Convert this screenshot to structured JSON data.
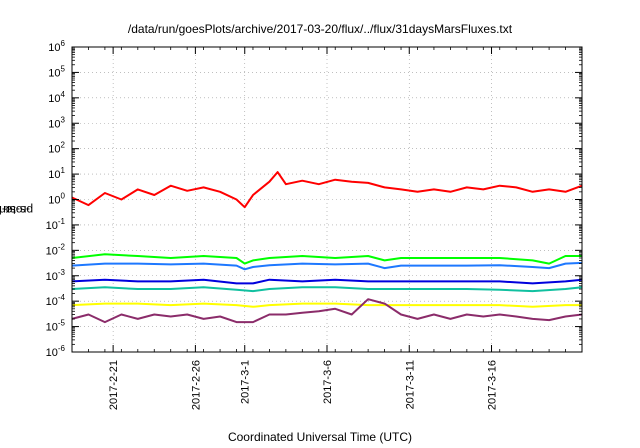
{
  "chart_data": {
    "type": "line",
    "title": "/data/run/goesPlots/archive/2017-03-20/flux/../flux/31daysMarsFluxes.txt",
    "xlabel": "Coordinated Universal Time (UTC)",
    "ylabel_prefix": "protons/cm",
    "ylabel_sup": "2",
    "ylabel_suffix": "-s-sr-MeV",
    "yscale": "log",
    "ylim_exp": [
      -6,
      6
    ],
    "ytick_exps": [
      -6,
      -5,
      -4,
      -3,
      -2,
      -1,
      0,
      1,
      2,
      3,
      4,
      5,
      6
    ],
    "xlim_days": [
      0,
      31
    ],
    "xtick_labels": [
      "2017-2-21",
      "2017-2-26",
      "2017-3-1",
      "2017-3-6",
      "2017-3-11",
      "2017-3-16"
    ],
    "xtick_days": [
      2.5,
      7.5,
      10.5,
      15.5,
      20.5,
      25.5
    ],
    "grid": true,
    "series": [
      {
        "color": "#ff0000",
        "x": [
          0,
          1,
          2,
          3,
          4,
          5,
          6,
          7,
          8,
          9,
          10,
          10.5,
          11,
          12,
          12.5,
          13,
          14,
          15,
          16,
          17,
          18,
          19,
          20,
          21,
          22,
          23,
          24,
          25,
          26,
          27,
          28,
          29,
          30,
          31
        ],
        "y": [
          1.2,
          0.6,
          1.8,
          1.0,
          2.5,
          1.5,
          3.5,
          2.2,
          3.0,
          2.0,
          1.0,
          0.5,
          1.5,
          5.0,
          12,
          4.0,
          5.5,
          4.0,
          6.0,
          5.0,
          4.5,
          3.0,
          2.5,
          2.0,
          2.5,
          2.0,
          3.0,
          2.5,
          3.5,
          3.0,
          2.0,
          2.5,
          2.0,
          3.5
        ]
      },
      {
        "color": "#00ff00",
        "x": [
          0,
          2,
          4,
          6,
          8,
          10,
          10.5,
          11,
          12,
          14,
          16,
          18,
          19,
          20,
          22,
          24,
          26,
          28,
          29,
          30,
          31
        ],
        "y": [
          0.005,
          0.007,
          0.006,
          0.005,
          0.006,
          0.005,
          0.003,
          0.004,
          0.005,
          0.006,
          0.005,
          0.006,
          0.004,
          0.005,
          0.005,
          0.005,
          0.005,
          0.004,
          0.003,
          0.006,
          0.006
        ]
      },
      {
        "color": "#1e78ff",
        "x": [
          0,
          2,
          4,
          6,
          8,
          10,
          10.5,
          11,
          12,
          14,
          16,
          18,
          19,
          20,
          22,
          24,
          26,
          28,
          29,
          30,
          31
        ],
        "y": [
          0.0025,
          0.003,
          0.003,
          0.0028,
          0.003,
          0.0025,
          0.0018,
          0.0022,
          0.0026,
          0.003,
          0.0028,
          0.003,
          0.002,
          0.0025,
          0.0025,
          0.0025,
          0.0026,
          0.0022,
          0.002,
          0.003,
          0.0032
        ]
      },
      {
        "color": "#0000dd",
        "x": [
          0,
          2,
          4,
          6,
          8,
          10,
          11,
          12,
          14,
          16,
          18,
          20,
          22,
          24,
          26,
          28,
          30,
          31
        ],
        "y": [
          0.0006,
          0.0007,
          0.0006,
          0.0006,
          0.0007,
          0.0005,
          0.0005,
          0.0007,
          0.0006,
          0.0007,
          0.0006,
          0.0006,
          0.0006,
          0.0006,
          0.0006,
          0.0005,
          0.0006,
          0.0007
        ]
      },
      {
        "color": "#10c0a0",
        "x": [
          0,
          2,
          4,
          6,
          8,
          10,
          11,
          12,
          14,
          16,
          18,
          20,
          22,
          24,
          26,
          28,
          30,
          31
        ],
        "y": [
          0.0003,
          0.00035,
          0.0003,
          0.0003,
          0.00035,
          0.00028,
          0.00025,
          0.0003,
          0.00035,
          0.00035,
          0.0003,
          0.0003,
          0.0003,
          0.0003,
          0.00028,
          0.00025,
          0.0003,
          0.00035
        ]
      },
      {
        "color": "#ffff00",
        "x": [
          0,
          2,
          4,
          6,
          8,
          10,
          11,
          12,
          14,
          16,
          18,
          20,
          22,
          24,
          26,
          28,
          30,
          31
        ],
        "y": [
          7e-05,
          8e-05,
          8e-05,
          7e-05,
          8e-05,
          7e-05,
          6e-05,
          7e-05,
          8e-05,
          8e-05,
          7e-05,
          7e-05,
          7e-05,
          7e-05,
          7e-05,
          6e-05,
          7e-05,
          7e-05
        ]
      },
      {
        "color": "#8b2c6a",
        "x": [
          0,
          1,
          2,
          3,
          4,
          5,
          6,
          7,
          8,
          9,
          10,
          11,
          12,
          13,
          14,
          15,
          16,
          17,
          18,
          19,
          20,
          21,
          22,
          23,
          24,
          25,
          26,
          27,
          28,
          29,
          30,
          31
        ],
        "y": [
          2e-05,
          3e-05,
          1.5e-05,
          3e-05,
          2e-05,
          3e-05,
          2.5e-05,
          3e-05,
          2e-05,
          2.5e-05,
          1.5e-05,
          1.5e-05,
          3e-05,
          3e-05,
          3.5e-05,
          4e-05,
          5e-05,
          3e-05,
          0.00012,
          8e-05,
          3e-05,
          2e-05,
          3e-05,
          2e-05,
          3e-05,
          2.5e-05,
          3e-05,
          2.5e-05,
          2e-05,
          1.8e-05,
          2.5e-05,
          3e-05
        ]
      }
    ]
  }
}
